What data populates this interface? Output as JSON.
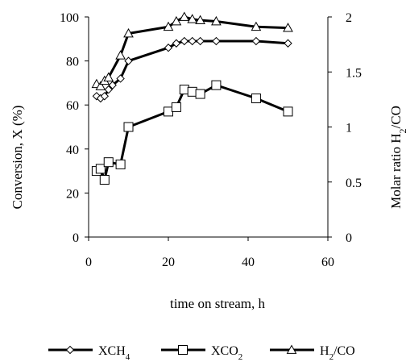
{
  "chart_data": {
    "type": "line",
    "x": {
      "label": "time on stream, h",
      "ticks": [
        "0",
        "20",
        "40",
        "60"
      ],
      "range": [
        0,
        60
      ]
    },
    "y_left": {
      "label": "Conversion, X (%)",
      "ticks": [
        "0",
        "20",
        "40",
        "60",
        "80",
        "100"
      ],
      "range": [
        0,
        100
      ]
    },
    "y_right": {
      "label": "Molar ratio H2/CO",
      "label_base": "Molar ratio H",
      "label_sub": "2",
      "label_end": "/CO",
      "ticks": [
        "0",
        "0.5",
        "1",
        "1.5",
        "2"
      ],
      "range": [
        0,
        2
      ]
    },
    "series": [
      {
        "name": "XCH4",
        "label_base": "XCH",
        "label_sub": "4",
        "marker": "diamond",
        "axis": "left",
        "x": [
          2,
          3,
          4,
          5,
          6,
          8,
          10,
          20,
          22,
          24,
          26,
          28,
          32,
          42,
          50
        ],
        "y": [
          64,
          63,
          64,
          67,
          69,
          72,
          80,
          86,
          88,
          89,
          89,
          89,
          89,
          89,
          88
        ]
      },
      {
        "name": "XCO2",
        "label_base": "XCO",
        "label_sub": "2",
        "marker": "square",
        "axis": "left",
        "x": [
          2,
          3,
          4,
          5,
          8,
          10,
          20,
          22,
          24,
          26,
          28,
          32,
          42,
          50
        ],
        "y": [
          30,
          31,
          26,
          34,
          33,
          50,
          57,
          59,
          67,
          66,
          65,
          69,
          63,
          57
        ]
      },
      {
        "name": "H2/CO",
        "label_base": "H",
        "label_sub": "2",
        "label_end": "/CO",
        "marker": "triangle",
        "axis": "right",
        "x": [
          2,
          3,
          4,
          5,
          8,
          10,
          20,
          22,
          24,
          26,
          28,
          32,
          42,
          50
        ],
        "y": [
          1.39,
          1.37,
          1.42,
          1.45,
          1.65,
          1.85,
          1.91,
          1.96,
          2.0,
          1.98,
          1.97,
          1.96,
          1.91,
          1.9
        ]
      }
    ],
    "legend_position": "bottom",
    "grid": false
  }
}
